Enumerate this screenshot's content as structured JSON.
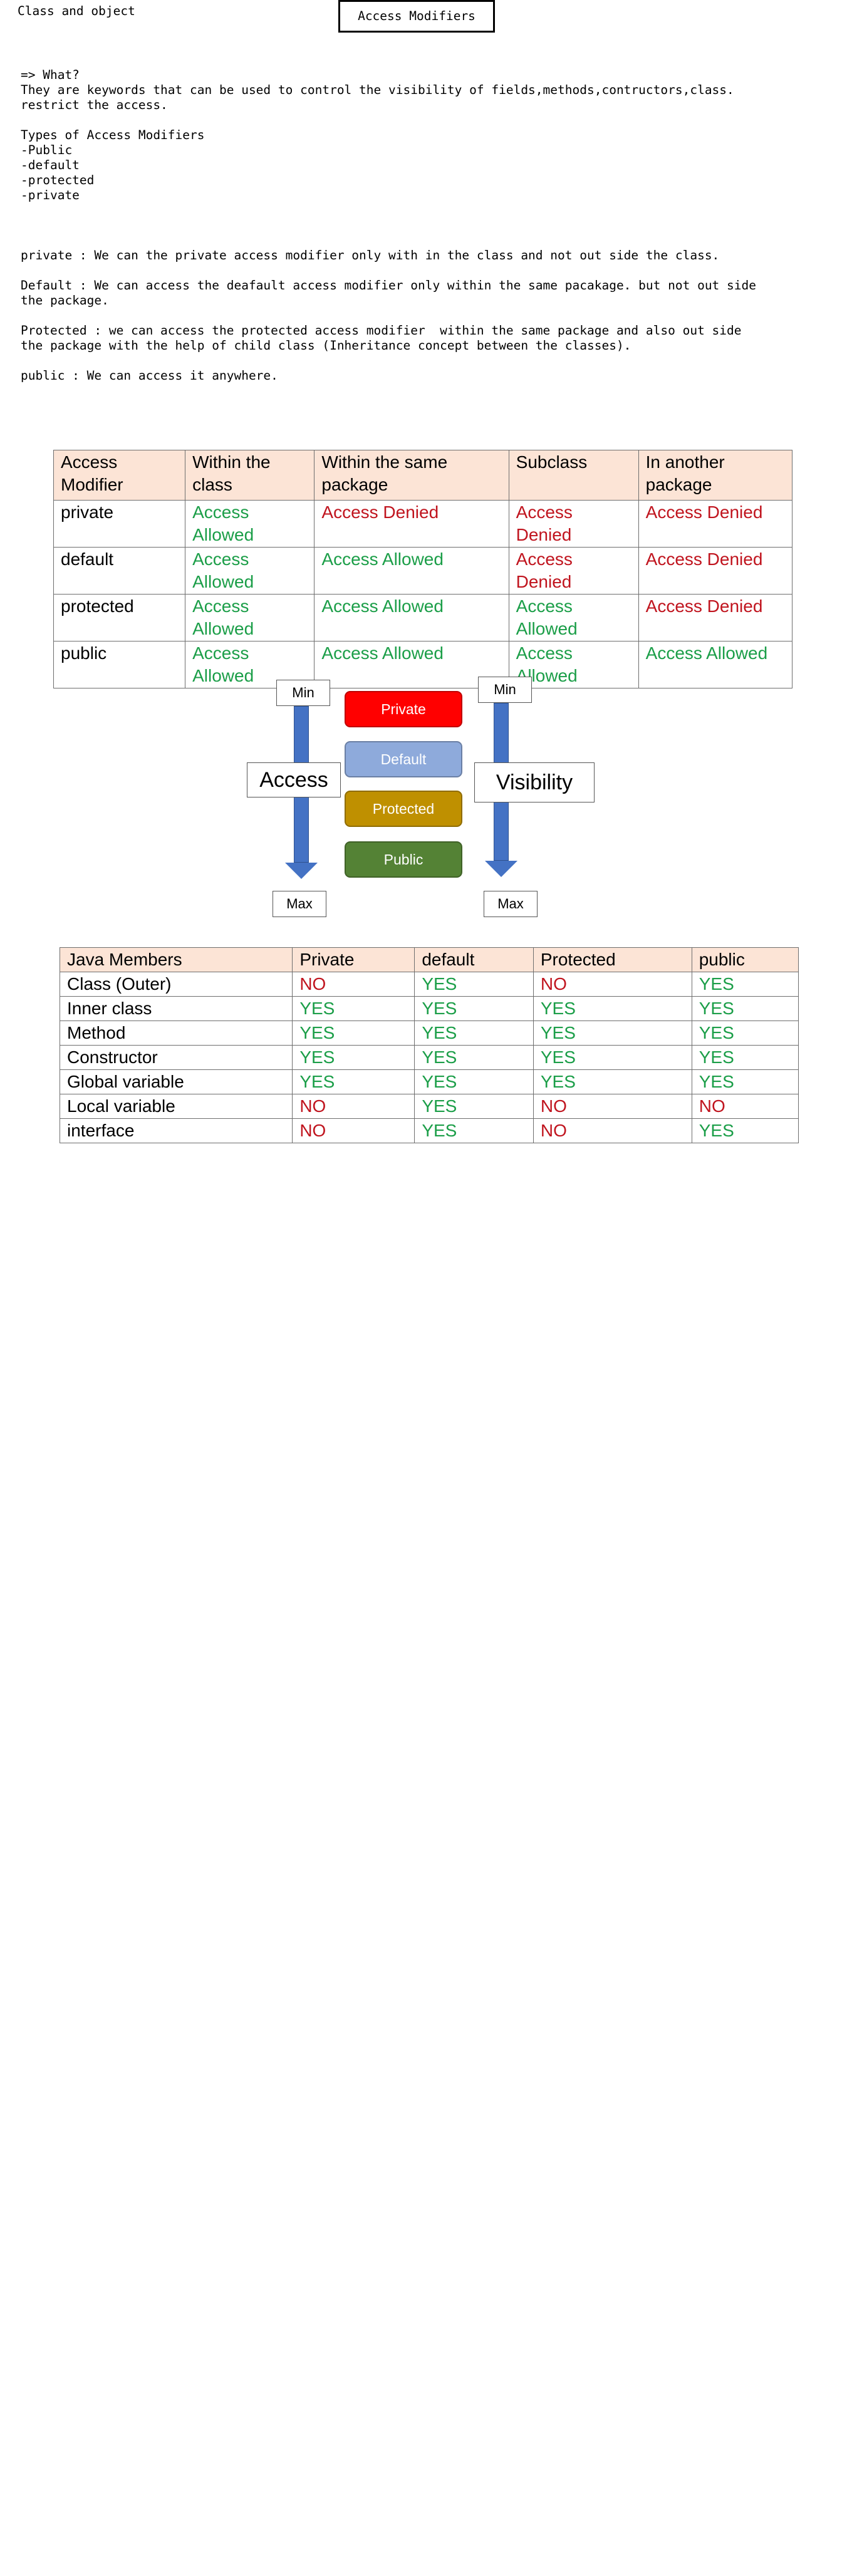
{
  "page": {
    "top_title": "Class and object",
    "heading": "Access Modifiers"
  },
  "notes": {
    "lines": [
      "=> What?",
      "They are keywords that can be used to control the visibility of fields,methods,contructors,class.",
      "restrict the access.",
      "",
      "Types of Access Modifiers",
      "-Public",
      "-default",
      "-protected",
      "-private",
      "",
      "",
      "",
      "private : We can the private access modifier only with in the class and not out side the class.",
      "",
      "Default : We can access the deafault access modifier only within the same pacakage. but not out side",
      "the package.",
      "",
      "Protected : we can access the protected access modifier  within the same package and also out side",
      "the package with the help of child class (Inheritance concept between the classes).",
      "",
      "public : We can access it anywhere."
    ]
  },
  "access_table": {
    "headers": [
      "Access Modifier",
      "Within the class",
      "Within the same package",
      "Subclass",
      "In another package"
    ],
    "rows": [
      {
        "modifier": "private",
        "cells": [
          {
            "text": "Access Allowed",
            "status": "allowed"
          },
          {
            "text": "Access Denied",
            "status": "denied"
          },
          {
            "text": "Access Denied",
            "status": "denied"
          },
          {
            "text": "Access Denied",
            "status": "denied"
          }
        ]
      },
      {
        "modifier": "default",
        "cells": [
          {
            "text": "Access Allowed",
            "status": "allowed"
          },
          {
            "text": "Access Allowed",
            "status": "allowed"
          },
          {
            "text": "Access Denied",
            "status": "denied"
          },
          {
            "text": "Access Denied",
            "status": "denied"
          }
        ]
      },
      {
        "modifier": "protected",
        "cells": [
          {
            "text": "Access Allowed",
            "status": "allowed"
          },
          {
            "text": "Access Allowed",
            "status": "allowed"
          },
          {
            "text": "Access Allowed",
            "status": "allowed"
          },
          {
            "text": "Access Denied",
            "status": "denied"
          }
        ]
      },
      {
        "modifier": "public",
        "cells": [
          {
            "text": "Access Allowed",
            "status": "allowed"
          },
          {
            "text": "Access Allowed",
            "status": "allowed"
          },
          {
            "text": "Access Allowed",
            "status": "allowed"
          },
          {
            "text": "Access Allowed",
            "status": "allowed"
          }
        ]
      }
    ]
  },
  "diagram": {
    "left_min": "Min",
    "left_max": "Max",
    "left_label": "Access",
    "right_min": "Min",
    "right_max": "Max",
    "right_label": "Visibility",
    "levels": [
      {
        "label": "Private",
        "color": "#ff0000"
      },
      {
        "label": "Default",
        "color": "#8eaadb"
      },
      {
        "label": "Protected",
        "color": "#bf9000"
      },
      {
        "label": "Public",
        "color": "#548235"
      }
    ]
  },
  "members_table": {
    "headers": [
      "Java Members",
      "Private",
      "default",
      "Protected",
      "public"
    ],
    "rows": [
      {
        "member": "Class (Outer)",
        "cells": [
          {
            "text": "NO",
            "status": "denied"
          },
          {
            "text": "YES",
            "status": "allowed"
          },
          {
            "text": "NO",
            "status": "denied"
          },
          {
            "text": "YES",
            "status": "allowed"
          }
        ]
      },
      {
        "member": "Inner class",
        "cells": [
          {
            "text": "YES",
            "status": "allowed"
          },
          {
            "text": "YES",
            "status": "allowed"
          },
          {
            "text": "YES",
            "status": "allowed"
          },
          {
            "text": "YES",
            "status": "allowed"
          }
        ]
      },
      {
        "member": "Method",
        "cells": [
          {
            "text": "YES",
            "status": "allowed"
          },
          {
            "text": "YES",
            "status": "allowed"
          },
          {
            "text": "YES",
            "status": "allowed"
          },
          {
            "text": "YES",
            "status": "allowed"
          }
        ]
      },
      {
        "member": "Constructor",
        "cells": [
          {
            "text": "YES",
            "status": "allowed"
          },
          {
            "text": "YES",
            "status": "allowed"
          },
          {
            "text": "YES",
            "status": "allowed"
          },
          {
            "text": "YES",
            "status": "allowed"
          }
        ]
      },
      {
        "member": "Global variable",
        "cells": [
          {
            "text": "YES",
            "status": "allowed"
          },
          {
            "text": "YES",
            "status": "allowed"
          },
          {
            "text": "YES",
            "status": "allowed"
          },
          {
            "text": "YES",
            "status": "allowed"
          }
        ]
      },
      {
        "member": "Local variable",
        "cells": [
          {
            "text": "NO",
            "status": "denied"
          },
          {
            "text": "YES",
            "status": "allowed"
          },
          {
            "text": "NO",
            "status": "denied"
          },
          {
            "text": "NO",
            "status": "denied"
          }
        ]
      },
      {
        "member": "interface",
        "cells": [
          {
            "text": "NO",
            "status": "denied"
          },
          {
            "text": "YES",
            "status": "allowed"
          },
          {
            "text": "NO",
            "status": "denied"
          },
          {
            "text": "YES",
            "status": "allowed"
          }
        ]
      }
    ]
  }
}
